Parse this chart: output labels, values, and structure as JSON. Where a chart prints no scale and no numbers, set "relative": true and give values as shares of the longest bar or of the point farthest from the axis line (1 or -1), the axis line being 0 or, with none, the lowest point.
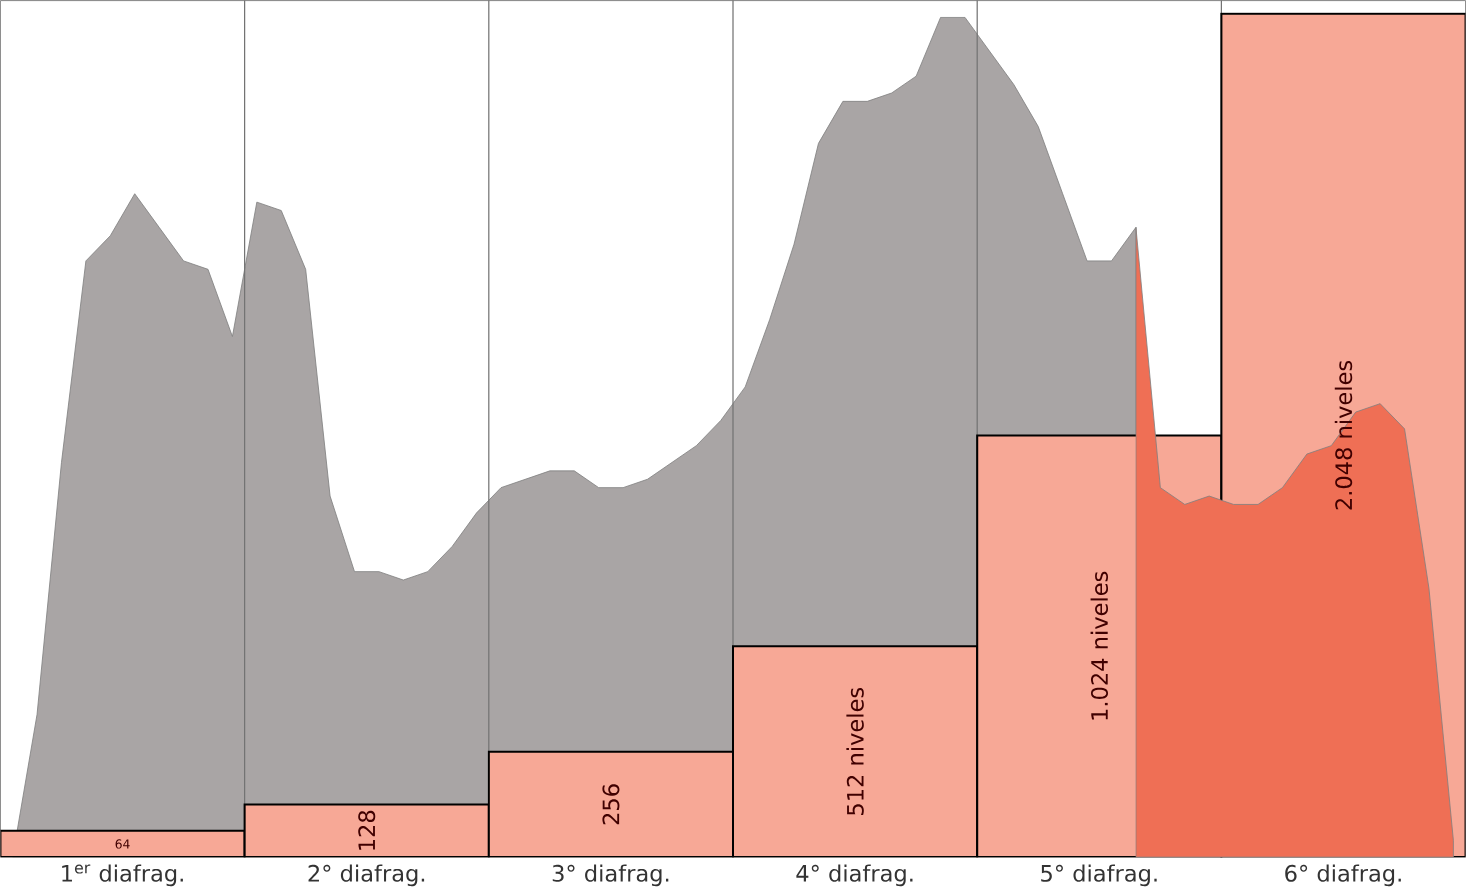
{
  "chart_data": [
    {
      "type": "bar",
      "categories": [
        "1$^{er}$ diafrag.",
        "2° diafrag.",
        "3° diafrag.",
        "4° diafrag.",
        "5° diafrag.",
        "6° diafrag."
      ],
      "values": [
        64,
        128,
        256,
        512,
        1024,
        2048
      ],
      "value_labels": [
        "64",
        "128",
        "256",
        "512 niveles",
        "1.024 niveles",
        "2.048 niveles"
      ],
      "colors": [
        "#f7a896",
        "#f7a896",
        "#f7a896",
        "#f7a896",
        "#f7a896",
        "#f7a896"
      ],
      "ylim": [
        0,
        2080
      ],
      "tick_labels": "x",
      "grid": "x"
    },
    {
      "type": "area",
      "relative": true,
      "tick_labels": false,
      "categories": [
        null,
        null,
        null,
        null,
        null,
        null,
        null,
        null,
        null,
        null,
        null,
        null,
        null,
        null,
        null,
        null,
        null,
        null,
        null,
        null,
        null,
        null,
        null,
        null,
        null,
        null,
        null,
        null,
        null,
        null,
        null,
        null,
        null,
        null,
        null,
        null,
        null,
        null,
        null,
        null,
        null,
        null,
        null,
        null,
        null,
        null,
        null,
        null,
        null,
        null,
        null,
        null,
        null,
        null,
        null,
        null,
        null,
        null,
        null,
        null
      ],
      "series": [
        {
          "color": "#a9a5a5",
          "values": [
            0,
            0.17,
            0.47,
            0.71,
            0.74,
            0.79,
            0.75,
            0.71,
            0.7,
            0.62,
            0.78,
            0.77,
            0.7,
            0.43,
            0.34,
            0.34,
            0.33,
            0.34,
            0.37,
            0.41,
            0.44,
            0.45,
            0.46,
            0.46,
            0.44,
            0.44,
            0.45,
            0.47,
            0.49,
            0.52,
            0.56,
            0.64,
            0.73,
            0.85,
            0.9,
            0.9,
            0.91,
            0.93,
            1.0,
            1.0,
            0.96,
            0.92,
            0.87,
            0.79,
            0.71,
            0.71,
            0.75,
            null,
            null,
            null,
            null,
            null,
            null,
            null,
            null,
            null,
            null,
            null,
            null,
            null
          ]
        },
        {
          "color": "#ef6f55",
          "values": [
            null,
            null,
            null,
            null,
            null,
            null,
            null,
            null,
            null,
            null,
            null,
            null,
            null,
            null,
            null,
            null,
            null,
            null,
            null,
            null,
            null,
            null,
            null,
            null,
            null,
            null,
            null,
            null,
            null,
            null,
            null,
            null,
            null,
            null,
            null,
            null,
            null,
            null,
            null,
            null,
            null,
            null,
            null,
            null,
            null,
            null,
            0.75,
            0.44,
            0.42,
            0.43,
            0.42,
            0.42,
            0.44,
            0.48,
            0.49,
            0.53,
            0.54,
            0.51,
            0.32,
            0.02
          ]
        }
      ]
    }
  ]
}
